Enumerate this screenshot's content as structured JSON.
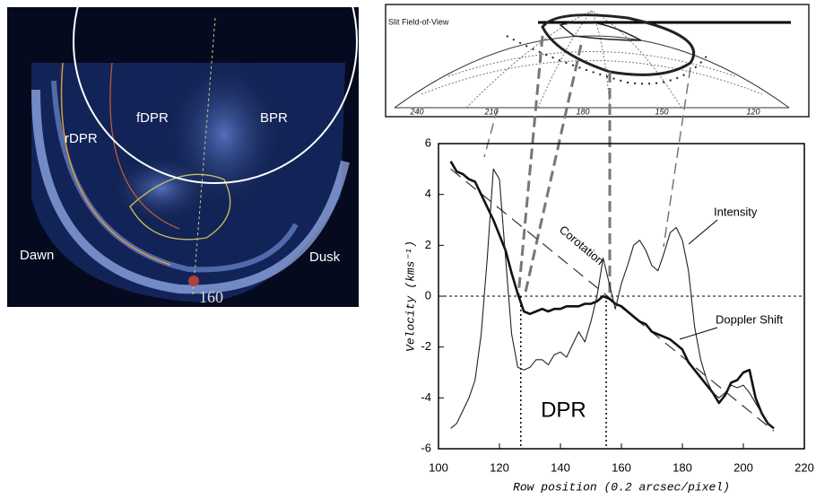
{
  "image": {
    "labels": [
      "rDPR",
      "fDPR",
      "BPR",
      "Dawn",
      "Dusk",
      "160"
    ]
  },
  "projection": {
    "title": "Slit Field-of-View",
    "lon_labels": [
      "240",
      "210",
      "180",
      "150",
      "120"
    ]
  },
  "chart_data": {
    "type": "line",
    "xlabel": "Row position (0.2 arcsec/pixel)",
    "ylabel": "Velocity (kms⁻¹)",
    "xlim": [
      100,
      220
    ],
    "xticks": [
      100,
      120,
      140,
      160,
      180,
      200,
      220
    ],
    "ylim": [
      -6,
      6
    ],
    "yticks": [
      -6,
      -4,
      -2,
      0,
      2,
      4,
      6
    ],
    "x": [
      104,
      106,
      108,
      110,
      112,
      114,
      116,
      118,
      120,
      122,
      124,
      126,
      128,
      130,
      132,
      134,
      136,
      138,
      140,
      142,
      144,
      146,
      148,
      150,
      152,
      154,
      156,
      158,
      160,
      162,
      164,
      166,
      168,
      170,
      172,
      174,
      176,
      178,
      180,
      182,
      184,
      186,
      188,
      190,
      192,
      194,
      196,
      198,
      200,
      202,
      204,
      206,
      208,
      210
    ],
    "series": [
      {
        "name": "Doppler Shift",
        "color": "#111111",
        "values": [
          5.3,
          4.9,
          4.8,
          4.6,
          4.5,
          4.0,
          3.5,
          3.0,
          2.4,
          1.8,
          0.9,
          0.1,
          -0.6,
          -0.7,
          -0.6,
          -0.5,
          -0.6,
          -0.5,
          -0.5,
          -0.4,
          -0.4,
          -0.4,
          -0.3,
          -0.3,
          -0.2,
          0,
          -0.1,
          -0.3,
          -0.4,
          -0.6,
          -0.8,
          -1.0,
          -1.1,
          -1.4,
          -1.5,
          -1.6,
          -1.7,
          -1.9,
          -2.1,
          -2.6,
          -2.9,
          -3.2,
          -3.5,
          -3.8,
          -4.2,
          -3.9,
          -3.4,
          -3.3,
          -3.0,
          -2.9,
          -4.0,
          -4.6,
          -5.0,
          -5.2
        ]
      },
      {
        "name": "Intensity",
        "color": "#222222",
        "values": [
          -5.2,
          -5.0,
          -4.5,
          -4.0,
          -3.3,
          -1.5,
          1.5,
          5.0,
          4.6,
          1.5,
          -1.5,
          -2.8,
          -2.9,
          -2.8,
          -2.5,
          -2.5,
          -2.7,
          -2.3,
          -2.2,
          -2.4,
          -1.9,
          -1.4,
          -1.8,
          -1.0,
          0.0,
          1.5,
          0.5,
          -0.5,
          0.5,
          1.2,
          2.0,
          2.2,
          1.8,
          1.2,
          1.0,
          1.7,
          2.5,
          2.7,
          2.2,
          1.0,
          -1.2,
          -2.5,
          -3.3,
          -3.8,
          -4.0,
          -3.8,
          -3.5,
          -3.6,
          -3.5,
          -3.8,
          -4.2,
          -4.6,
          -5.0,
          -5.2
        ]
      }
    ],
    "corotation": {
      "name": "Corotation",
      "x": [
        104,
        210
      ],
      "y": [
        5.0,
        -5.3
      ]
    },
    "vlines": [
      127,
      155
    ],
    "hline": 0,
    "region_label": "DPR"
  }
}
